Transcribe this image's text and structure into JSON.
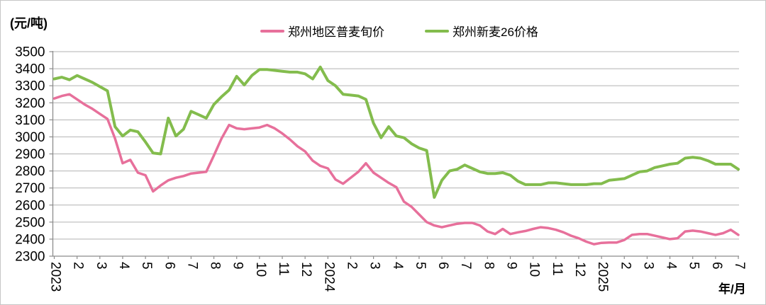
{
  "unit_label": "(元/吨)",
  "axis_label": "年/月",
  "legend": [
    {
      "label": "郑州地区普麦旬价",
      "color": "#E7709B"
    },
    {
      "label": "郑州新麦26价格",
      "color": "#83BC4D"
    }
  ],
  "chart_data": {
    "type": "line",
    "title": "",
    "ylabel": "(元/吨)",
    "xlabel": "年/月",
    "ylim": [
      2300,
      3500
    ],
    "ytick_step": 100,
    "grid": true,
    "legend_position": "top",
    "points_per_month": 3,
    "x_tick_labels": [
      "2023",
      "2",
      "3",
      "4",
      "5",
      "6",
      "7",
      "8",
      "9",
      "10",
      "11",
      "12",
      "2024",
      "2",
      "3",
      "4",
      "5",
      "6",
      "7",
      "8",
      "9",
      "10",
      "11",
      "12",
      "2025",
      "2",
      "3",
      "4",
      "5",
      "6",
      "7"
    ],
    "x_note": "three ten-day-period (旬) values per month from 2023-01 to 2025-06, one value for 2025-07",
    "series": [
      {
        "name": "郑州地区普麦旬价",
        "color": "#E7709B",
        "width": 3.5,
        "values": [
          3225,
          3240,
          3250,
          3220,
          3190,
          3165,
          3135,
          3105,
          2990,
          2845,
          2865,
          2790,
          2775,
          2680,
          2715,
          2745,
          2760,
          2770,
          2785,
          2790,
          2795,
          2890,
          2990,
          3070,
          3050,
          3045,
          3050,
          3055,
          3070,
          3050,
          3020,
          2985,
          2945,
          2915,
          2860,
          2830,
          2815,
          2750,
          2725,
          2760,
          2795,
          2845,
          2790,
          2760,
          2730,
          2705,
          2620,
          2590,
          2545,
          2500,
          2480,
          2470,
          2480,
          2490,
          2495,
          2495,
          2480,
          2445,
          2430,
          2460,
          2430,
          2440,
          2448,
          2460,
          2470,
          2465,
          2455,
          2440,
          2420,
          2405,
          2385,
          2370,
          2378,
          2380,
          2380,
          2395,
          2425,
          2430,
          2430,
          2420,
          2410,
          2400,
          2405,
          2445,
          2450,
          2445,
          2435,
          2425,
          2435,
          2455,
          2425
        ]
      },
      {
        "name": "郑州新麦26价格",
        "color": "#83BC4D",
        "width": 4,
        "values": [
          3340,
          3350,
          3335,
          3360,
          3340,
          3320,
          3295,
          3270,
          3060,
          3005,
          3040,
          3030,
          2970,
          2905,
          2900,
          3110,
          3005,
          3045,
          3150,
          3130,
          3110,
          3190,
          3235,
          3275,
          3355,
          3305,
          3360,
          3395,
          3395,
          3390,
          3385,
          3380,
          3380,
          3370,
          3340,
          3410,
          3330,
          3300,
          3250,
          3245,
          3240,
          3220,
          3080,
          2995,
          3060,
          3005,
          2995,
          2960,
          2935,
          2920,
          2645,
          2745,
          2800,
          2810,
          2835,
          2815,
          2795,
          2785,
          2785,
          2790,
          2775,
          2740,
          2720,
          2720,
          2720,
          2730,
          2730,
          2725,
          2720,
          2720,
          2720,
          2725,
          2725,
          2745,
          2750,
          2755,
          2775,
          2795,
          2800,
          2820,
          2830,
          2840,
          2845,
          2875,
          2880,
          2875,
          2860,
          2840,
          2840,
          2840,
          2810
        ]
      }
    ]
  }
}
